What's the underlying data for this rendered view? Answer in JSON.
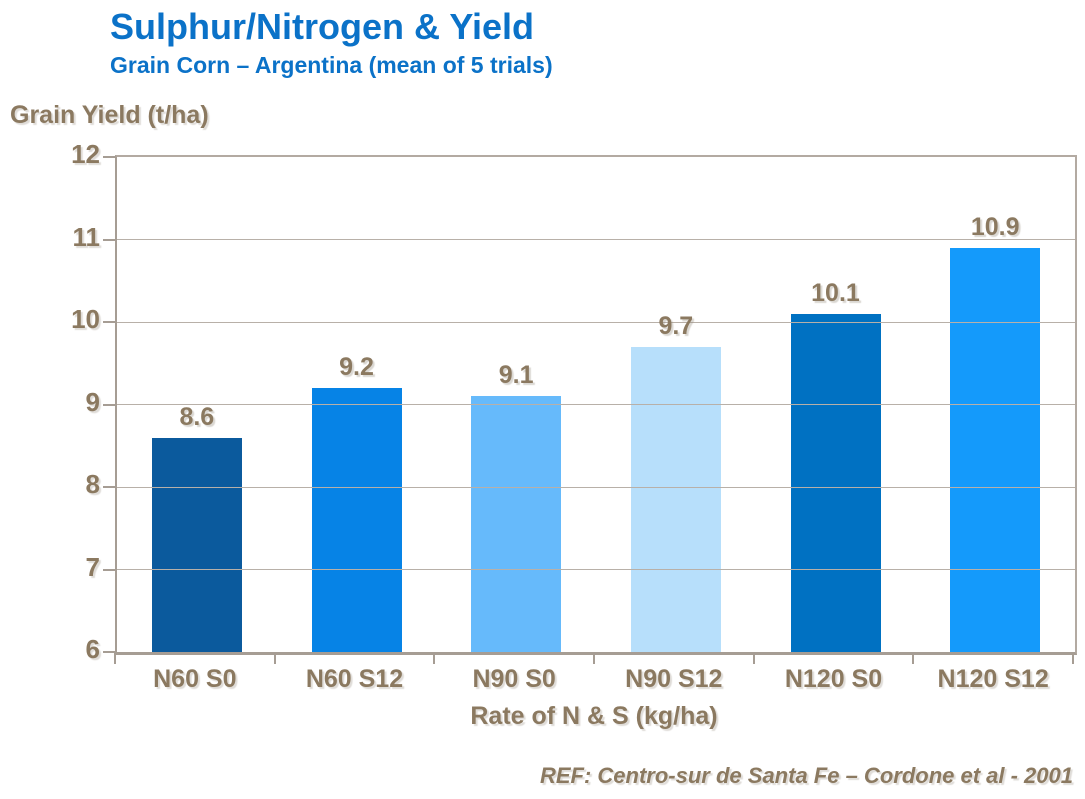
{
  "header": {
    "title": "Sulphur/Nitrogen & Yield",
    "subtitle": "Grain Corn – Argentina (mean of 5 trials)"
  },
  "chart_data": {
    "type": "bar",
    "title": "Sulphur/Nitrogen & Yield",
    "subtitle": "Grain Corn – Argentina (mean of 5 trials)",
    "categories": [
      "N60 S0",
      "N60 S12",
      "N90 S0",
      "N90 S12",
      "N120 S0",
      "N120 S12"
    ],
    "values": [
      8.6,
      9.2,
      9.1,
      9.7,
      10.1,
      10.9
    ],
    "data_labels": [
      "8.6",
      "9.2",
      "9.1",
      "9.7",
      "10.1",
      "10.9"
    ],
    "bar_colors": [
      "#0B5A9D",
      "#0683E6",
      "#66BAFB",
      "#B7DFFB",
      "#0071C2",
      "#149AFB"
    ],
    "xlabel": "Rate of N & S (kg/ha)",
    "ylabel": "Grain Yield (t/ha)",
    "ylim": [
      6,
      12
    ],
    "yticks": [
      6,
      7,
      8,
      9,
      10,
      11,
      12
    ],
    "grid": true,
    "gridlines_over_bars": true,
    "legend": false,
    "reference": "REF: Centro-sur de Santa Fe – Cordone et al - 2001"
  },
  "colors": {
    "title_blue": "#0B72C8",
    "axis_text": "#8B7960",
    "axis_line": "#A69D94",
    "gridline": "#B8B0A8",
    "background": "#FFFFFF"
  }
}
